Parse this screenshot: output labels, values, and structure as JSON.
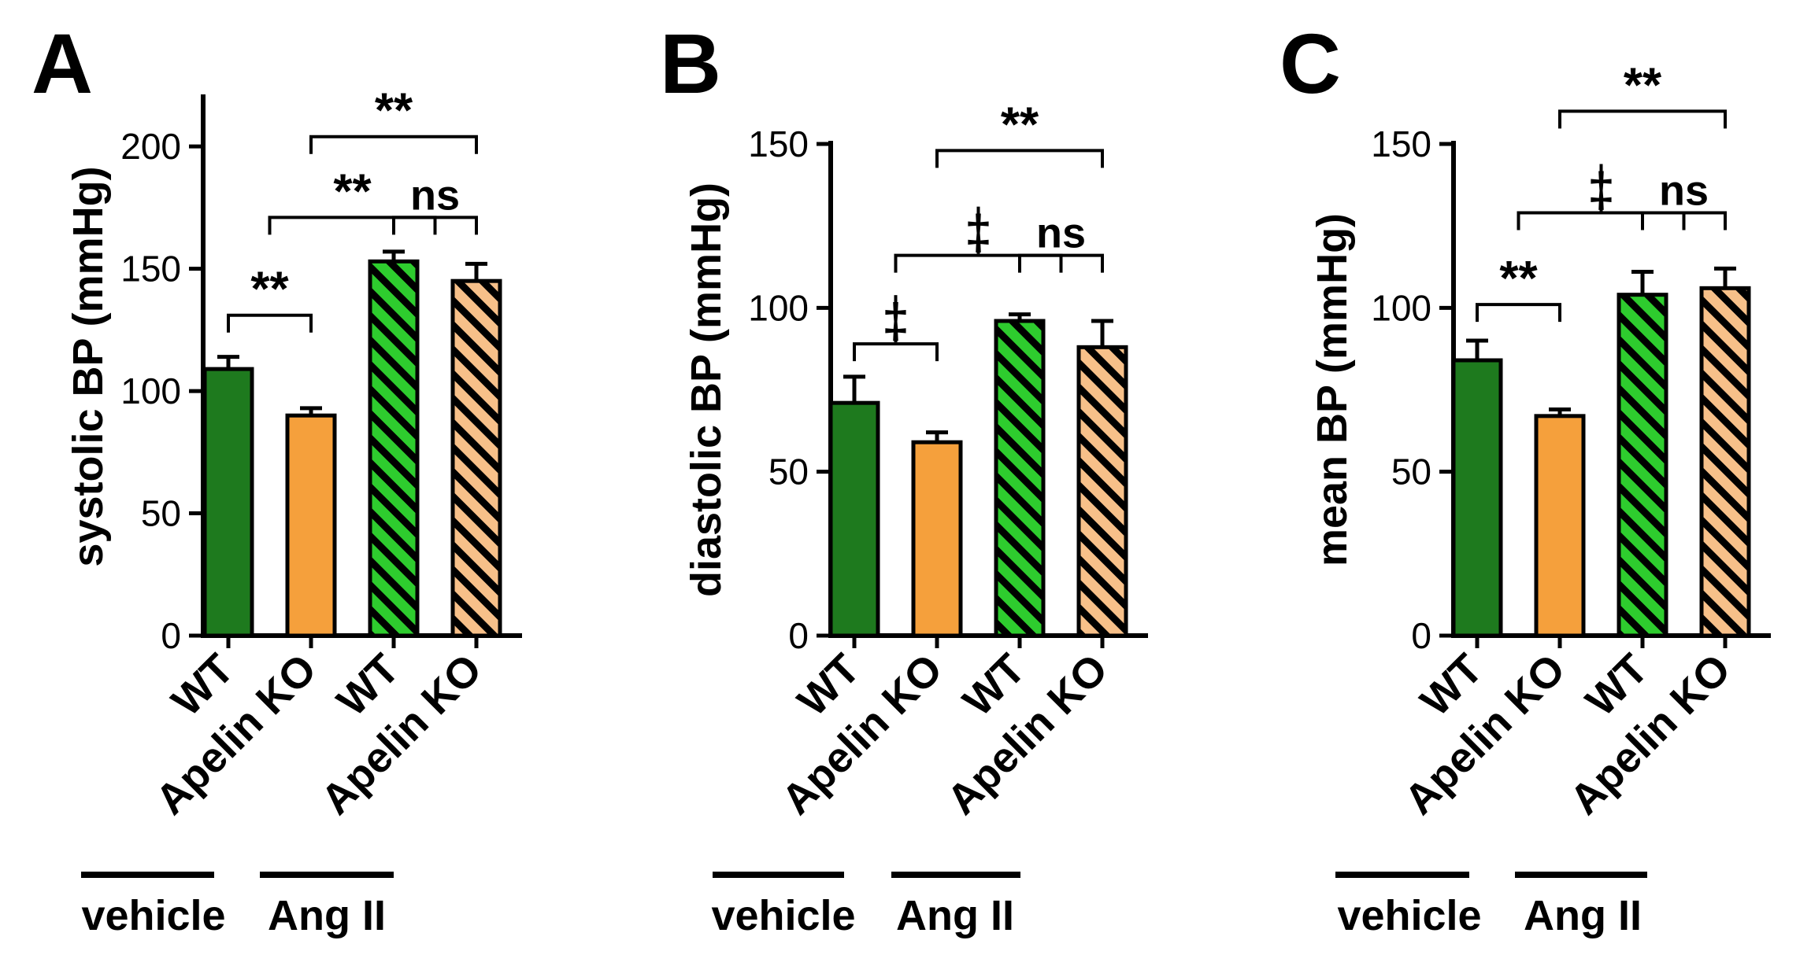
{
  "chart_data": [
    {
      "panel": "A",
      "type": "bar",
      "ylabel": "systolic BP (mmHg)",
      "ylim": [
        0,
        220
      ],
      "yticks": [
        0,
        50,
        100,
        150,
        200
      ],
      "categories": [
        "WT",
        "Apelin KO",
        "WT",
        "Apelin KO"
      ],
      "values": [
        109,
        90,
        153,
        145
      ],
      "errors": [
        5,
        3,
        4,
        7
      ],
      "fills": [
        "solid",
        "solid",
        "hatched",
        "hatched"
      ],
      "colors": [
        "#1e7a1e",
        "#f5a03c",
        "#2ecc2e",
        "#f7c089"
      ],
      "groups": [
        {
          "label": "vehicle",
          "span": [
            0,
            1
          ]
        },
        {
          "label": "Ang II",
          "span": [
            2,
            3
          ]
        }
      ],
      "comparisons": [
        {
          "from": [
            0
          ],
          "to": [
            1
          ],
          "label": "**",
          "y": 131
        },
        {
          "from": [
            0,
            1
          ],
          "to": [
            2,
            3
          ],
          "label": "**",
          "y": 171
        },
        {
          "from": [
            2
          ],
          "to": [
            3
          ],
          "label": "ns",
          "y": 171
        },
        {
          "from": [
            1
          ],
          "to": [
            3
          ],
          "label": "**",
          "y": 204
        }
      ]
    },
    {
      "panel": "B",
      "type": "bar",
      "ylabel": "diastolic BP (mmHg)",
      "ylim": [
        0,
        150
      ],
      "yticks": [
        0,
        50,
        100,
        150
      ],
      "categories": [
        "WT",
        "Apelin KO",
        "WT",
        "Apelin KO"
      ],
      "values": [
        71,
        59,
        96,
        88
      ],
      "errors": [
        8,
        3,
        2,
        8
      ],
      "fills": [
        "solid",
        "solid",
        "hatched",
        "hatched"
      ],
      "colors": [
        "#1e7a1e",
        "#f5a03c",
        "#2ecc2e",
        "#f7c089"
      ],
      "groups": [
        {
          "label": "vehicle",
          "span": [
            0,
            1
          ]
        },
        {
          "label": "Ang II",
          "span": [
            2,
            3
          ]
        }
      ],
      "comparisons": [
        {
          "from": [
            0
          ],
          "to": [
            1
          ],
          "label": "‡",
          "y": 89
        },
        {
          "from": [
            0,
            1
          ],
          "to": [
            2,
            3
          ],
          "label": "‡",
          "y": 116
        },
        {
          "from": [
            2
          ],
          "to": [
            3
          ],
          "label": "ns",
          "y": 116
        },
        {
          "from": [
            1
          ],
          "to": [
            3
          ],
          "label": "**",
          "y": 148
        }
      ]
    },
    {
      "panel": "C",
      "type": "bar",
      "ylabel": "mean BP (mmHg)",
      "ylim": [
        0,
        150
      ],
      "yticks": [
        0,
        50,
        100,
        150
      ],
      "categories": [
        "WT",
        "Apelin KO",
        "WT",
        "Apelin KO"
      ],
      "values": [
        84,
        67,
        104,
        106
      ],
      "errors": [
        6,
        2,
        7,
        6
      ],
      "fills": [
        "solid",
        "solid",
        "hatched",
        "hatched"
      ],
      "colors": [
        "#1e7a1e",
        "#f5a03c",
        "#2ecc2e",
        "#f7c089"
      ],
      "groups": [
        {
          "label": "vehicle",
          "span": [
            0,
            1
          ]
        },
        {
          "label": "Ang II",
          "span": [
            2,
            3
          ]
        }
      ],
      "comparisons": [
        {
          "from": [
            0
          ],
          "to": [
            1
          ],
          "label": "**",
          "y": 101
        },
        {
          "from": [
            0,
            1
          ],
          "to": [
            2,
            3
          ],
          "label": "‡",
          "y": 129
        },
        {
          "from": [
            2
          ],
          "to": [
            3
          ],
          "label": "ns",
          "y": 129
        },
        {
          "from": [
            1
          ],
          "to": [
            3
          ],
          "label": "**",
          "y": 160
        }
      ]
    }
  ]
}
